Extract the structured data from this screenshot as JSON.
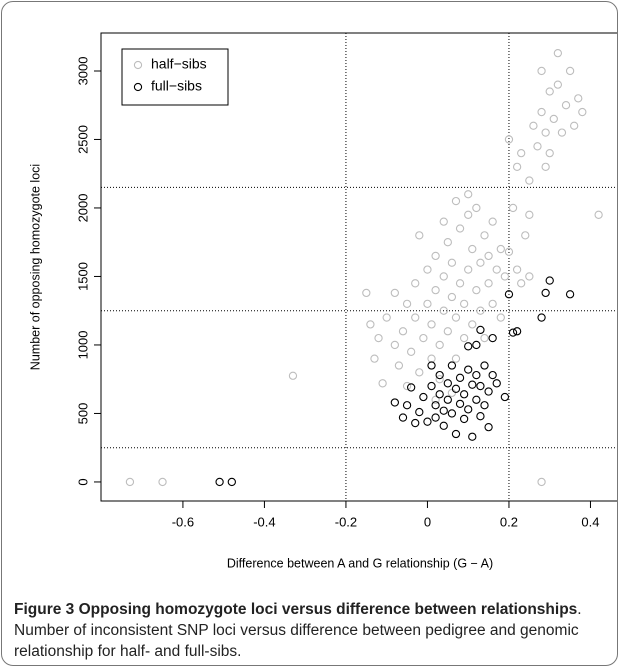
{
  "chart_data": {
    "type": "scatter",
    "xlabel": "Difference between A and G relationship (G − A)",
    "ylabel": "Number of opposing homozygote loci",
    "xlim": [
      -0.801,
      0.47
    ],
    "ylim": [
      -139,
      3277
    ],
    "xticks": [
      -0.6,
      -0.4,
      -0.2,
      0.0,
      0.2,
      0.4
    ],
    "yticks": [
      0,
      500,
      1000,
      1500,
      2000,
      2500,
      3000
    ],
    "hlines": [
      250,
      1250,
      2150
    ],
    "vlines": [
      -0.2,
      0.2
    ],
    "legend": "top-left",
    "series": [
      {
        "name": "half−sibs",
        "color": "#bdbdbd",
        "x": [
          -0.1,
          -0.08,
          -0.08,
          -0.07,
          -0.06,
          -0.05,
          -0.05,
          -0.04,
          -0.03,
          -0.03,
          -0.02,
          -0.01,
          0,
          0,
          0.01,
          0.01,
          0.02,
          0.02,
          0.03,
          0.03,
          0.04,
          0.04,
          0.05,
          0.05,
          0.06,
          0.06,
          0.07,
          0.07,
          0.08,
          0.08,
          0.09,
          0.09,
          0.1,
          0.1,
          0.11,
          0.11,
          0.12,
          0.12,
          0.13,
          0.13,
          0.14,
          0.14,
          0.15,
          0.15,
          0.16,
          0.16,
          0.17,
          0.18,
          0.18,
          -0.14,
          -0.15,
          -0.12,
          -0.11,
          -0.13,
          0.19,
          0.2,
          0.22,
          0.23,
          0.25,
          0.22,
          0.21,
          0.25,
          0.24,
          0.22,
          0.2,
          0.23,
          0.25,
          0.26,
          0.27,
          0.28,
          0.28,
          0.29,
          0.3,
          0.3,
          0.31,
          0.32,
          0.32,
          0.33,
          0.34,
          0.35,
          0.36,
          0.37,
          0.38,
          0.29,
          0.42,
          0.28,
          -0.73,
          -0.65,
          -0.33,
          -0.02,
          0.04,
          0.07,
          0.1,
          0.02,
          0.06
        ],
        "y": [
          1200,
          1000,
          1380,
          850,
          1100,
          1300,
          700,
          950,
          1200,
          1450,
          800,
          1050,
          1300,
          1550,
          900,
          1150,
          1400,
          1650,
          750,
          1000,
          1250,
          1500,
          1750,
          1100,
          1350,
          1600,
          900,
          1200,
          1450,
          1850,
          1050,
          1300,
          1550,
          1950,
          1150,
          1700,
          1400,
          2000,
          1250,
          1600,
          1800,
          1050,
          1450,
          1650,
          1900,
          1300,
          1550,
          1700,
          1200,
          1150,
          1380,
          1050,
          720,
          900,
          1500,
          1680,
          1550,
          1450,
          1500,
          1100,
          2000,
          1950,
          1800,
          2300,
          2500,
          2400,
          2200,
          2600,
          2450,
          2700,
          3000,
          2550,
          2850,
          2400,
          2650,
          3130,
          2900,
          2550,
          2750,
          3000,
          2600,
          2800,
          2700,
          2300,
          1950,
          0,
          0,
          0,
          775,
          1800,
          1900,
          2050,
          2100,
          600,
          650
        ]
      },
      {
        "name": "full−sibs",
        "color": "#000000",
        "x": [
          -0.51,
          -0.48,
          0.3,
          0.35,
          0.29,
          0.28,
          0.21,
          0.22,
          0.2,
          0.19,
          0.16,
          0.13,
          -0.08,
          -0.06,
          -0.05,
          -0.04,
          -0.03,
          -0.02,
          -0.01,
          0,
          0.01,
          0.01,
          0.02,
          0.02,
          0.03,
          0.03,
          0.04,
          0.04,
          0.05,
          0.05,
          0.06,
          0.06,
          0.07,
          0.07,
          0.08,
          0.08,
          0.09,
          0.09,
          0.1,
          0.1,
          0.11,
          0.11,
          0.12,
          0.12,
          0.13,
          0.13,
          0.14,
          0.14,
          0.15,
          0.15,
          0.12,
          0.16,
          0.17,
          0.1
        ],
        "y": [
          0,
          0,
          1470,
          1370,
          1380,
          1200,
          1090,
          1100,
          1370,
          620,
          1050,
          1110,
          580,
          470,
          560,
          690,
          430,
          510,
          620,
          440,
          700,
          850,
          560,
          470,
          780,
          640,
          520,
          410,
          720,
          600,
          850,
          500,
          680,
          350,
          570,
          760,
          460,
          640,
          820,
          530,
          710,
          330,
          600,
          780,
          480,
          700,
          850,
          560,
          660,
          400,
          1000,
          780,
          720,
          990
        ]
      }
    ]
  },
  "caption": {
    "label": "Figure 3",
    "title": "Opposing homozygote loci versus difference between relationships",
    "text": ". Number of inconsistent SNP loci versus difference between pedigree and genomic relationship for half- and full-sibs."
  }
}
